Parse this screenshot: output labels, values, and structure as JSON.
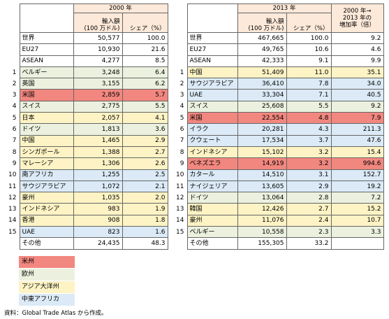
{
  "tables": [
    {
      "header": {
        "year": "2000 年",
        "columns": [
          "輸入額\n(100 万ドル)",
          "シェア（%）"
        ]
      },
      "rows": [
        {
          "name": "世界",
          "import": "50,577",
          "share": "100.0"
        },
        {
          "name": "EU27",
          "import": "10,930",
          "share": "21.6"
        },
        {
          "name": "ASEAN",
          "import": "4,277",
          "share": "8.5"
        },
        {
          "rank": "1",
          "name": "ベルギー",
          "import": "3,248",
          "share": "6.4",
          "color": "#ebf1de"
        },
        {
          "rank": "2",
          "name": "英国",
          "import": "3,155",
          "share": "6.2",
          "color": "#ebf1de"
        },
        {
          "rank": "3",
          "name": "米国",
          "import": "2,859",
          "share": "5.7",
          "color": "#f2877f"
        },
        {
          "rank": "4",
          "name": "スイス",
          "import": "2,775",
          "share": "5.5",
          "color": "#ebf1de"
        },
        {
          "rank": "5",
          "name": "日本",
          "import": "2,057",
          "share": "4.1",
          "color": "#fdf3c4"
        },
        {
          "rank": "6",
          "name": "ドイツ",
          "import": "1,813",
          "share": "3.6",
          "color": "#ebf1de"
        },
        {
          "rank": "7",
          "name": "中国",
          "import": "1,465",
          "share": "2.9",
          "color": "#fdf3c4"
        },
        {
          "rank": "8",
          "name": "シンガポール",
          "import": "1,388",
          "share": "2.7",
          "color": "#fdf3c4"
        },
        {
          "rank": "9",
          "name": "マレーシア",
          "import": "1,306",
          "share": "2.6",
          "color": "#fdf3c4"
        },
        {
          "rank": "10",
          "name": "南アフリカ",
          "import": "1,255",
          "share": "2.5",
          "color": "#dbeaf6"
        },
        {
          "rank": "11",
          "name": "サウジアラビア",
          "import": "1,072",
          "share": "2.1",
          "color": "#dbeaf6"
        },
        {
          "rank": "12",
          "name": "豪州",
          "import": "1,035",
          "share": "2.0",
          "color": "#fdf3c4"
        },
        {
          "rank": "13",
          "name": "インドネシア",
          "import": "983",
          "share": "1.9",
          "color": "#fdf3c4"
        },
        {
          "rank": "14",
          "name": "香港",
          "import": "908",
          "share": "1.8",
          "color": "#fdf3c4"
        },
        {
          "rank": "15",
          "name": "UAE",
          "import": "823",
          "share": "1.6",
          "color": "#dbeaf6"
        },
        {
          "name": "その他",
          "import": "24,435",
          "share": "48.3"
        }
      ]
    },
    {
      "header": {
        "year": "2013 年",
        "columns": [
          "輸入額\n(100 万ドル)",
          "シェア（%）"
        ],
        "growth": "2000 年→\n2013 年の\n増加率（倍）"
      },
      "rows": [
        {
          "name": "世界",
          "import": "467,665",
          "share": "100.0",
          "growth": "9.2"
        },
        {
          "name": "EU27",
          "import": "49,765",
          "share": "10.6",
          "growth": "4.6"
        },
        {
          "name": "ASEAN",
          "import": "42,333",
          "share": "9.1",
          "growth": "9.9"
        },
        {
          "rank": "1",
          "name": "中国",
          "import": "51,409",
          "share": "11.0",
          "growth": "35.1",
          "color": "#fdf3c4"
        },
        {
          "rank": "2",
          "name": "サウジアラビア",
          "import": "36,410",
          "share": "7.8",
          "growth": "34.0",
          "color": "#dbeaf6"
        },
        {
          "rank": "3",
          "name": "UAE",
          "import": "33,304",
          "share": "7.1",
          "growth": "40.5",
          "color": "#dbeaf6"
        },
        {
          "rank": "4",
          "name": "スイス",
          "import": "25,608",
          "share": "5.5",
          "growth": "9.2",
          "color": "#ebf1de"
        },
        {
          "rank": "5",
          "name": "米国",
          "import": "22,554",
          "share": "4.8",
          "growth": "7.9",
          "color": "#f2877f"
        },
        {
          "rank": "6",
          "name": "イラク",
          "import": "20,281",
          "share": "4.3",
          "growth": "211.3",
          "color": "#dbeaf6"
        },
        {
          "rank": "7",
          "name": "クウェート",
          "import": "17,534",
          "share": "3.7",
          "growth": "47.6",
          "color": "#dbeaf6"
        },
        {
          "rank": "8",
          "name": "インドネシア",
          "import": "15,102",
          "share": "3.2",
          "growth": "15.4",
          "color": "#fdf3c4"
        },
        {
          "rank": "9",
          "name": "ベネズエラ",
          "import": "14,919",
          "share": "3.2",
          "growth": "994.6",
          "color": "#f2877f"
        },
        {
          "rank": "10",
          "name": "カタール",
          "import": "14,510",
          "share": "3.1",
          "growth": "152.7",
          "color": "#dbeaf6"
        },
        {
          "rank": "11",
          "name": "ナイジェリア",
          "import": "13,605",
          "share": "2.9",
          "growth": "19.2",
          "color": "#dbeaf6"
        },
        {
          "rank": "12",
          "name": "ドイツ",
          "import": "13,064",
          "share": "2.8",
          "growth": "7.2",
          "color": "#ebf1de"
        },
        {
          "rank": "13",
          "name": "韓国",
          "import": "12,426",
          "share": "2.7",
          "growth": "15.2",
          "color": "#fdf3c4"
        },
        {
          "rank": "14",
          "name": "豪州",
          "import": "11,076",
          "share": "2.4",
          "growth": "10.7",
          "color": "#fdf3c4"
        },
        {
          "rank": "15",
          "name": "ベルギー",
          "import": "10,558",
          "share": "2.3",
          "growth": "3.3",
          "color": "#ebf1de"
        },
        {
          "name": "その他",
          "import": "155,305",
          "share": "33.2"
        }
      ]
    }
  ],
  "legend": [
    {
      "label": "米州",
      "color": "#f2877f"
    },
    {
      "label": "欧州",
      "color": "#ebf1de"
    },
    {
      "label": "アジア大洋州",
      "color": "#fdf3c4"
    },
    {
      "label": "中東アフリカ",
      "color": "#dbeaf6"
    }
  ],
  "source": "資料：Global Trade Atlas から作成。"
}
